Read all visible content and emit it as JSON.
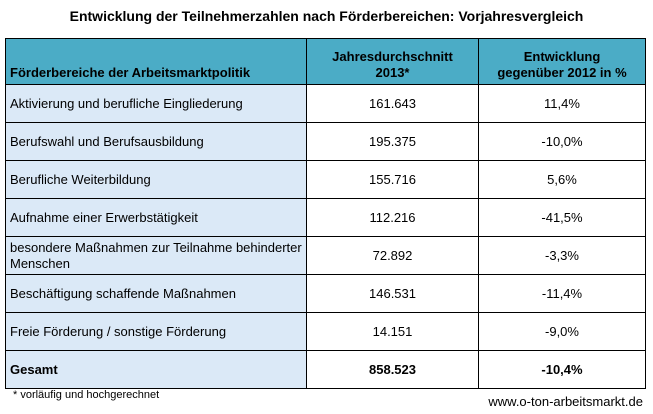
{
  "title": "Entwicklung der Teilnehmerzahlen nach Förderbereichen: Vorjahresvergleich",
  "table": {
    "headers": {
      "category": "Förderbereiche der Arbeitsmarktpolitik",
      "avg_line1": "Jahresdurchschnitt",
      "avg_line2": "2013*",
      "dev_line1": "Entwicklung",
      "dev_line2": "gegenüber 2012 in %"
    },
    "rows": [
      {
        "category": "Aktivierung und berufliche Eingliederung",
        "value": "161.643",
        "change": "11,4%"
      },
      {
        "category": "Berufswahl und Berufsausbildung",
        "value": "195.375",
        "change": "-10,0%"
      },
      {
        "category": "Berufliche Weiterbildung",
        "value": "155.716",
        "change": "5,6%"
      },
      {
        "category": "Aufnahme einer Erwerbstätigkeit",
        "value": "112.216",
        "change": "-41,5%"
      },
      {
        "category": "besondere Maßnahmen zur Teilnahme behinderter Menschen",
        "value": "72.892",
        "change": "-3,3%"
      },
      {
        "category": "Beschäftigung schaffende Maßnahmen",
        "value": "146.531",
        "change": "-11,4%"
      },
      {
        "category": "Freie Förderung / sonstige Förderung",
        "value": "14.151",
        "change": "-9,0%"
      }
    ],
    "total": {
      "category": "Gesamt",
      "value": "858.523",
      "change": "-10,4%"
    }
  },
  "footnote": "* vorläufig und hochgerechnet",
  "website": "www.o-ton-arbeitsmarkt.de",
  "colors": {
    "header_bg": "#4bacc6",
    "category_bg": "#dbe9f7"
  }
}
